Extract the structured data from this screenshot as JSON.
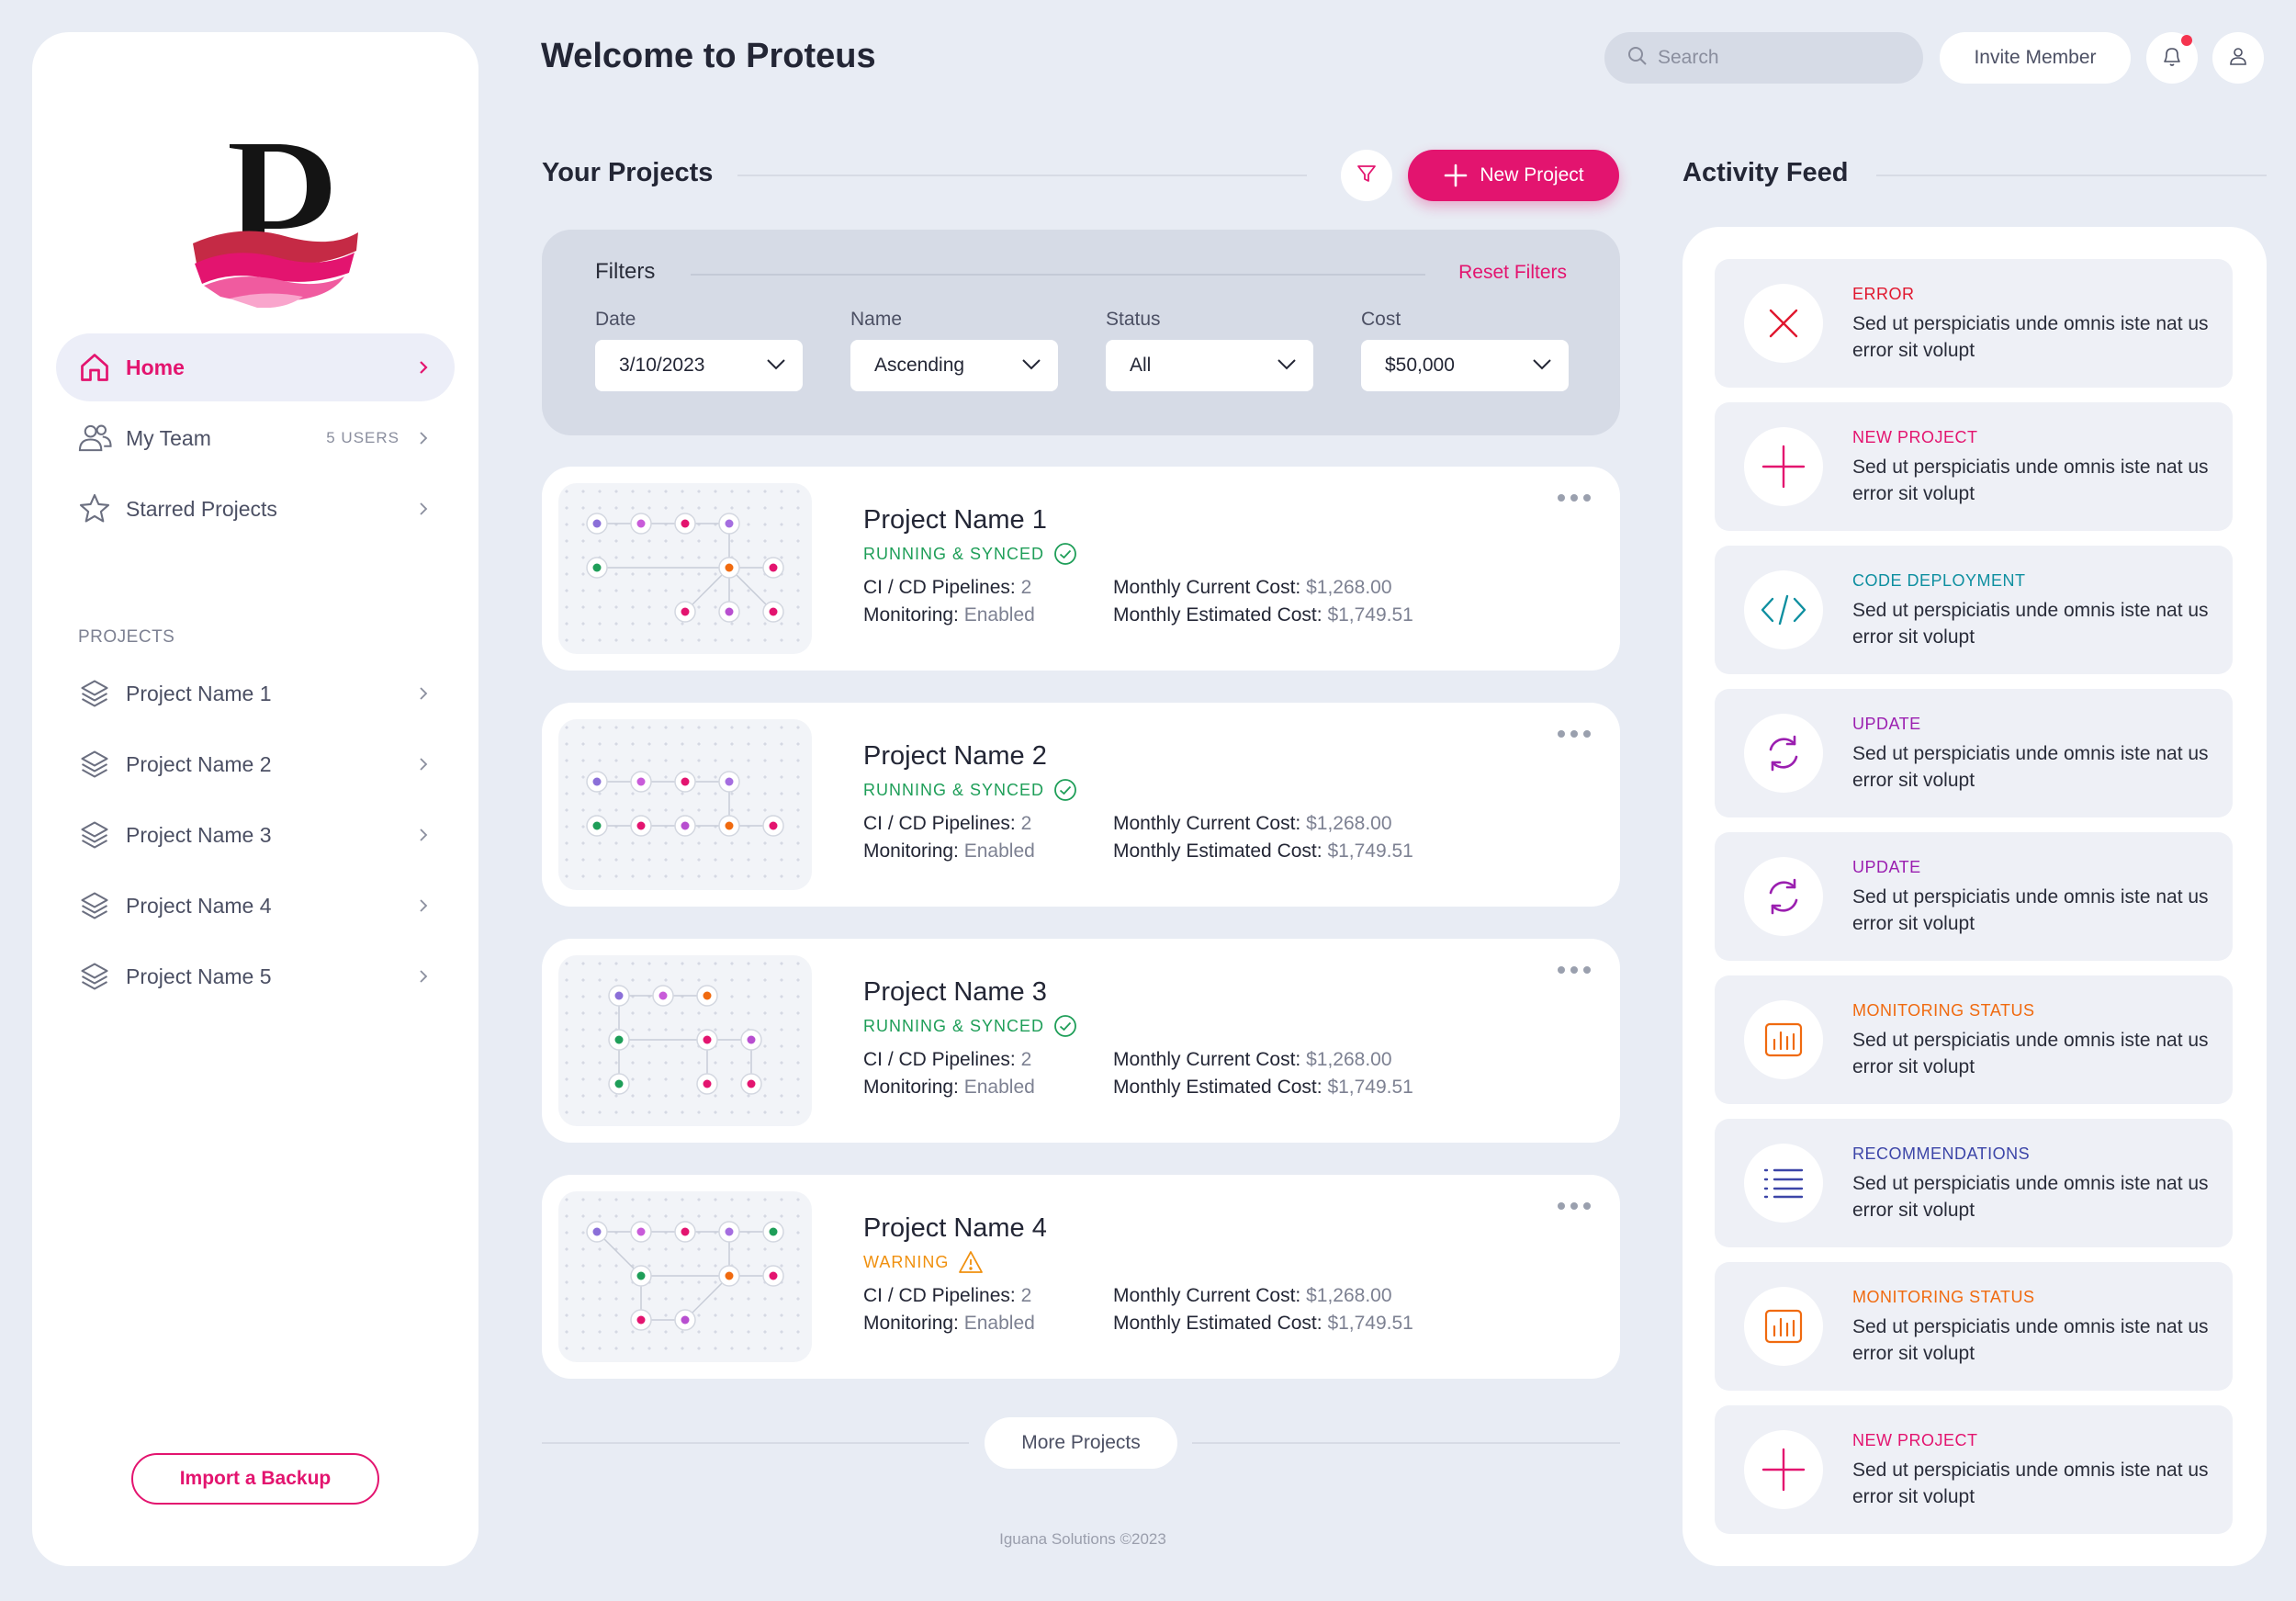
{
  "app": {
    "title": "Welcome to Proteus"
  },
  "header": {
    "search_placeholder": "Search",
    "invite_label": "Invite Member"
  },
  "sidebar": {
    "nav": [
      {
        "label": "Home",
        "badge": ""
      },
      {
        "label": "My Team",
        "badge": "5 USERS"
      },
      {
        "label": "Starred Projects",
        "badge": ""
      }
    ],
    "projects_label": "PROJECTS",
    "projects": [
      {
        "label": "Project Name 1"
      },
      {
        "label": "Project Name 2"
      },
      {
        "label": "Project Name 3"
      },
      {
        "label": "Project Name 4"
      },
      {
        "label": "Project Name 5"
      }
    ],
    "import_label": "Import a Backup"
  },
  "projects_section": {
    "title": "Your Projects",
    "new_project_label": "New Project",
    "filters": {
      "title": "Filters",
      "reset_label": "Reset Filters",
      "fields": [
        {
          "label": "Date",
          "value": "3/10/2023"
        },
        {
          "label": "Name",
          "value": "Ascending"
        },
        {
          "label": "Status",
          "value": "All"
        },
        {
          "label": "Cost",
          "value": "$50,000"
        }
      ]
    },
    "cards": [
      {
        "name": "Project Name 1",
        "status": "RUNNING & SYNCED",
        "status_kind": "ok",
        "pipelines_label": "CI / CD Pipelines:",
        "pipelines": "2",
        "monitoring_label": "Monitoring:",
        "monitoring": "Enabled",
        "current_label": "Monthly Current Cost:",
        "current": "$1,268.00",
        "estimated_label": "Monthly Estimated Cost:",
        "estimated": "$1,749.51"
      },
      {
        "name": "Project Name 2",
        "status": "RUNNING & SYNCED",
        "status_kind": "ok",
        "pipelines_label": "CI / CD Pipelines:",
        "pipelines": "2",
        "monitoring_label": "Monitoring:",
        "monitoring": "Enabled",
        "current_label": "Monthly Current Cost:",
        "current": "$1,268.00",
        "estimated_label": "Monthly Estimated Cost:",
        "estimated": "$1,749.51"
      },
      {
        "name": "Project Name 3",
        "status": "RUNNING & SYNCED",
        "status_kind": "ok",
        "pipelines_label": "CI / CD Pipelines:",
        "pipelines": "2",
        "monitoring_label": "Monitoring:",
        "monitoring": "Enabled",
        "current_label": "Monthly Current Cost:",
        "current": "$1,268.00",
        "estimated_label": "Monthly Estimated Cost:",
        "estimated": "$1,749.51"
      },
      {
        "name": "Project Name 4",
        "status": "WARNING",
        "status_kind": "warn",
        "pipelines_label": "CI / CD Pipelines:",
        "pipelines": "2",
        "monitoring_label": "Monitoring:",
        "monitoring": "Enabled",
        "current_label": "Monthly Current Cost:",
        "current": "$1,268.00",
        "estimated_label": "Monthly Estimated Cost:",
        "estimated": "$1,749.51"
      }
    ],
    "more_label": "More Projects",
    "footer": "Iguana Solutions ©2023"
  },
  "activity": {
    "title": "Activity Feed",
    "items": [
      {
        "type": "ERROR",
        "color": "#e0172e",
        "icon": "x-icon",
        "text": "Sed ut perspiciatis unde omnis iste nat us error sit volupt"
      },
      {
        "type": "NEW PROJECT",
        "color": "#e3146f",
        "icon": "plus-icon",
        "text": "Sed ut perspiciatis unde omnis iste nat us error sit volupt"
      },
      {
        "type": "CODE DEPLOYMENT",
        "color": "#0e8fa0",
        "icon": "code-icon",
        "text": "Sed ut perspiciatis unde omnis iste nat us error sit volupt"
      },
      {
        "type": "UPDATE",
        "color": "#9b1fb0",
        "icon": "refresh-icon",
        "text": "Sed ut perspiciatis unde omnis iste nat us error sit volupt"
      },
      {
        "type": "UPDATE",
        "color": "#9b1fb0",
        "icon": "refresh-icon",
        "text": "Sed ut perspiciatis unde omnis iste nat us error sit volupt"
      },
      {
        "type": "MONITORING STATUS",
        "color": "#f06a0f",
        "icon": "bar-chart-icon",
        "text": "Sed ut perspiciatis unde omnis iste nat us error sit volupt"
      },
      {
        "type": "RECOMMENDATIONS",
        "color": "#3c45a8",
        "icon": "list-icon",
        "text": "Sed ut perspiciatis unde omnis iste nat us error sit volupt"
      },
      {
        "type": "MONITORING STATUS",
        "color": "#f06a0f",
        "icon": "bar-chart-icon",
        "text": "Sed ut perspiciatis unde omnis iste nat us error sit volupt"
      },
      {
        "type": "NEW PROJECT",
        "color": "#e3146f",
        "icon": "plus-icon",
        "text": "Sed ut perspiciatis unde omnis iste nat us error sit volupt"
      }
    ]
  },
  "colors": {
    "accent": "#e3146f",
    "ok": "#1e9e58",
    "warn": "#f0900e"
  }
}
